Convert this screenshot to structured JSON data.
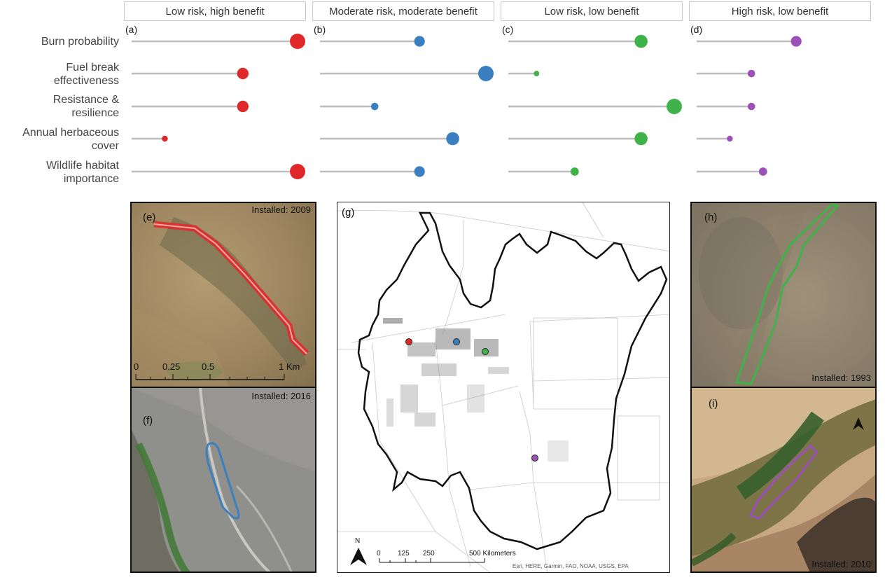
{
  "panels": [
    {
      "letter": "(a)",
      "header": "Low risk, high benefit",
      "color": "#e0282a"
    },
    {
      "letter": "(b)",
      "header": "Moderate risk, moderate benefit",
      "color": "#3a7fc0"
    },
    {
      "letter": "(c)",
      "header": "Low risk, low benefit",
      "color": "#3fb24a"
    },
    {
      "letter": "(d)",
      "header": "High risk, low benefit",
      "color": "#9b51b8"
    }
  ],
  "row_labels": [
    [
      "Burn probability"
    ],
    [
      "Fuel break",
      "effectiveness"
    ],
    [
      "Resistance &",
      "resilience"
    ],
    [
      "Annual herbaceous",
      "cover"
    ],
    [
      "Wildlife habitat",
      "importance"
    ]
  ],
  "chart_data": {
    "type": "lollipop",
    "categories": [
      "Burn probability",
      "Fuel break effectiveness",
      "Resistance & resilience",
      "Annual herbaceous cover",
      "Wildlife habitat importance"
    ],
    "xlim": [
      0,
      1
    ],
    "series": [
      {
        "name": "Low risk, high benefit",
        "values": [
          1.0,
          0.67,
          0.67,
          0.2,
          1.0
        ]
      },
      {
        "name": "Moderate risk, moderate benefit",
        "values": [
          0.6,
          1.0,
          0.33,
          0.8,
          0.6
        ]
      },
      {
        "name": "Low risk, low benefit",
        "values": [
          0.8,
          0.17,
          1.0,
          0.8,
          0.4
        ]
      },
      {
        "name": "High risk, low benefit",
        "values": [
          0.6,
          0.33,
          0.33,
          0.2,
          0.4
        ]
      }
    ]
  },
  "photos": {
    "e": {
      "letter": "(e)",
      "installed": "Installed: 2009",
      "scale_ticks": [
        "0",
        "0.25",
        "0.5",
        "1 Km"
      ]
    },
    "f": {
      "letter": "(f)",
      "installed": "Installed: 2016"
    },
    "h": {
      "letter": "(h)",
      "installed": "Installed: 1993"
    },
    "i": {
      "letter": "(i)",
      "installed": "Installed: 2010"
    }
  },
  "map": {
    "letter": "(g)",
    "north": "N",
    "scale_ticks": [
      "0",
      "125",
      "250",
      "500 Kilometers"
    ],
    "attribution": "Esri, HERE, Garmin, FAO, NOAA, USGS, EPA"
  }
}
